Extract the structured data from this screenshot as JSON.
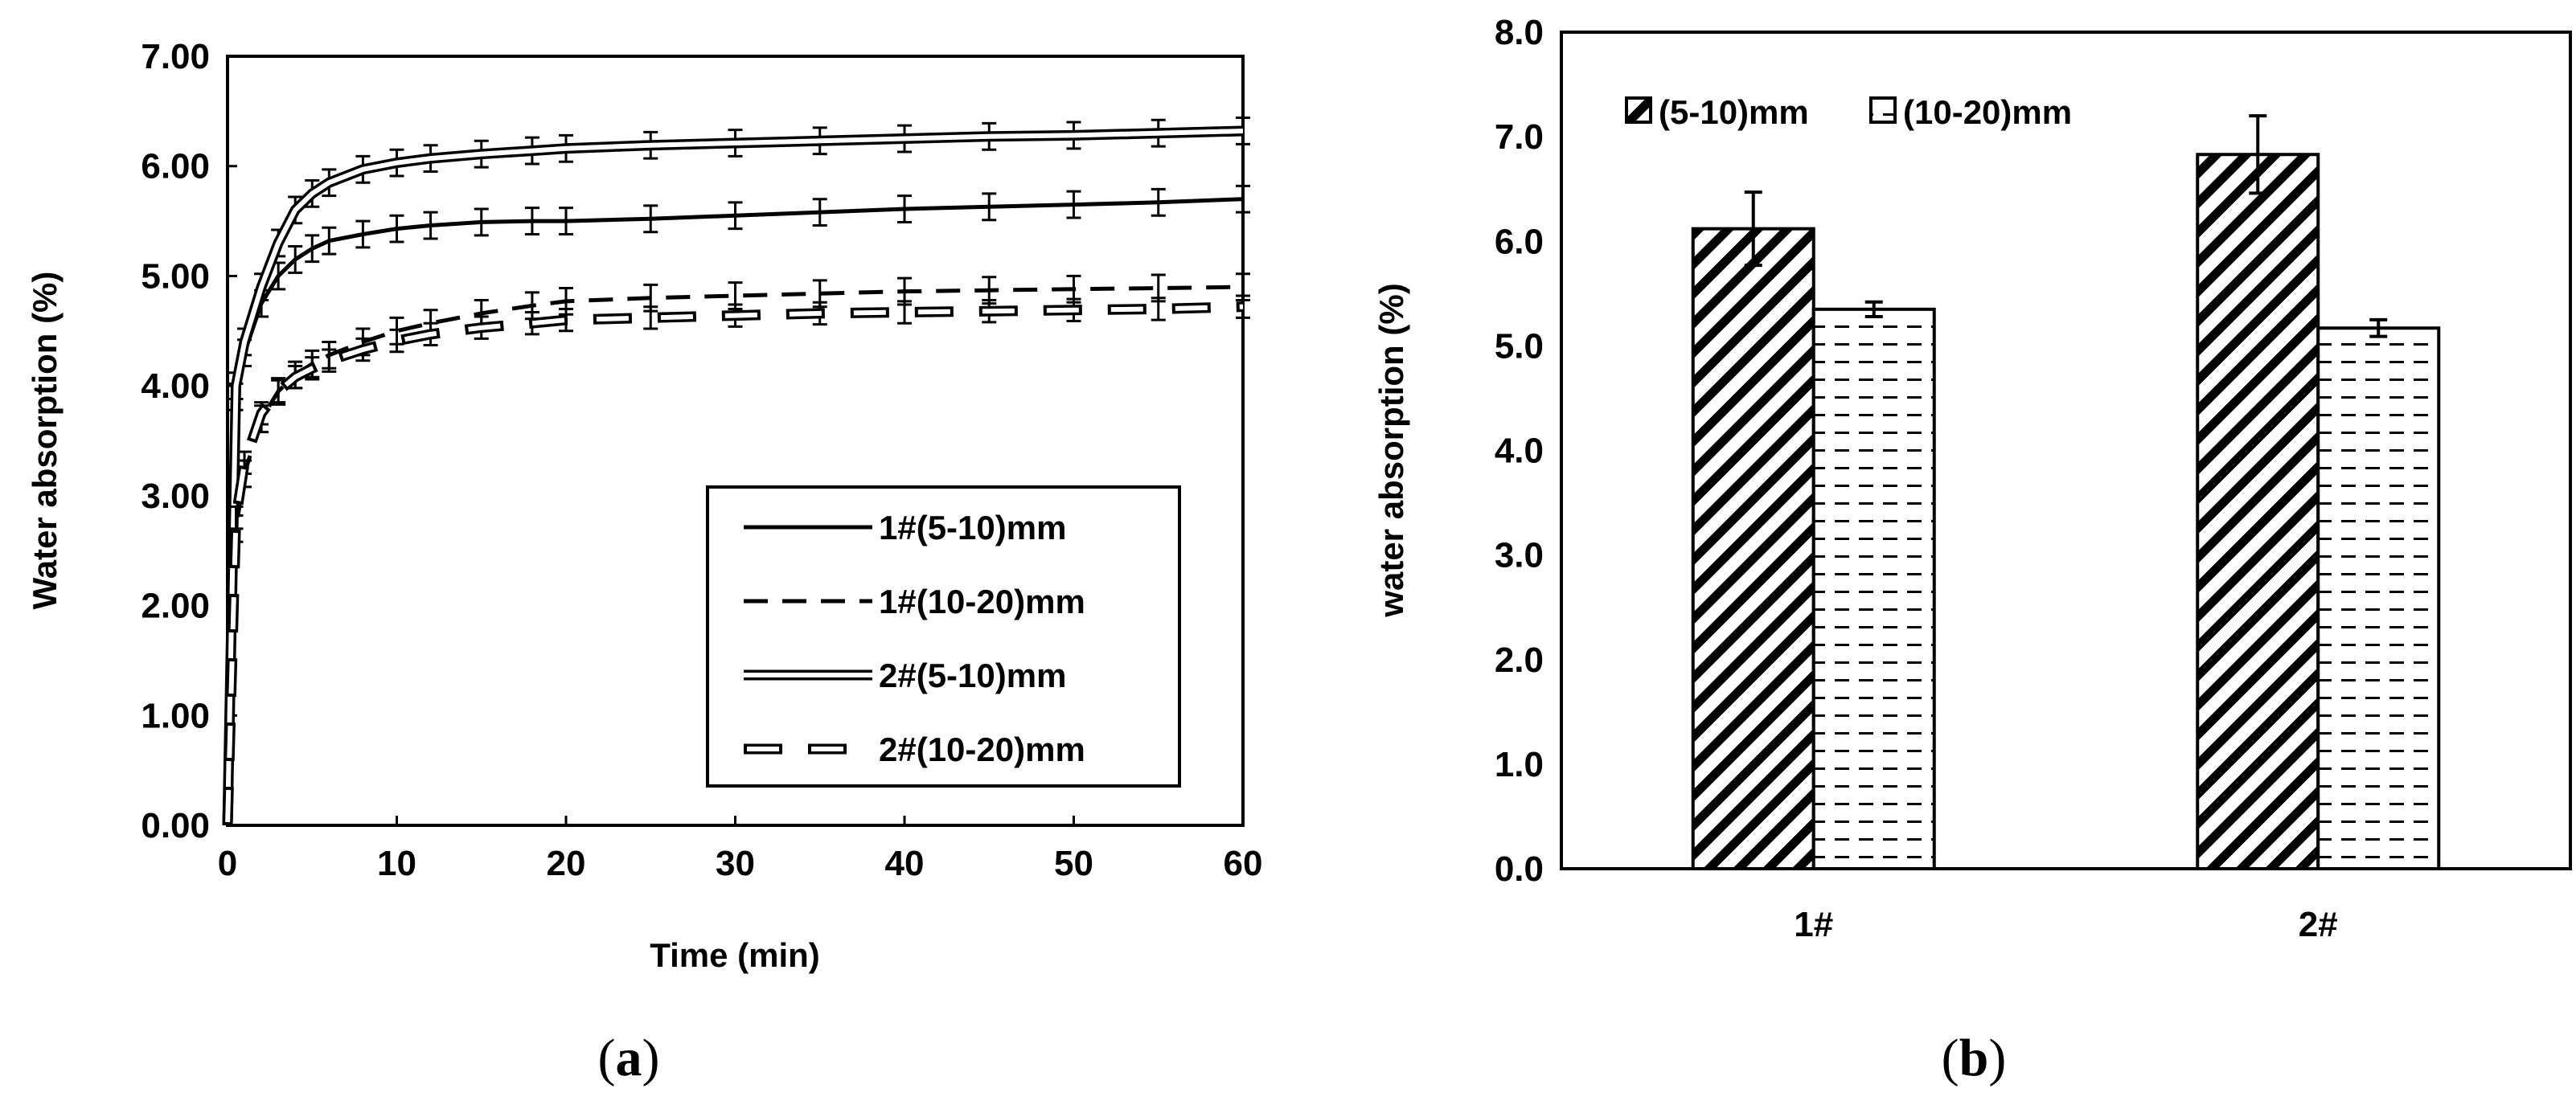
{
  "chart_data": [
    {
      "type": "line",
      "panel_label": "a",
      "xlabel": "Time (min)",
      "ylabel": "Water absorption (%)",
      "xlim": [
        0,
        60
      ],
      "ylim": [
        0,
        7
      ],
      "x_ticks": [
        "0",
        "10",
        "20",
        "30",
        "40",
        "50",
        "60"
      ],
      "y_ticks": [
        "0.00",
        "1.00",
        "2.00",
        "3.00",
        "4.00",
        "5.00",
        "6.00",
        "7.00"
      ],
      "legend_position": "bottom-right",
      "series": [
        {
          "name": "1#(5-10)mm",
          "style": "solid",
          "x": [
            0,
            0.5,
            1,
            2,
            3,
            4,
            5,
            6,
            8,
            10,
            12,
            15,
            18,
            20,
            25,
            30,
            35,
            40,
            45,
            50,
            55,
            60
          ],
          "y": [
            0,
            3.9,
            4.3,
            4.75,
            5.0,
            5.15,
            5.25,
            5.32,
            5.38,
            5.43,
            5.46,
            5.49,
            5.5,
            5.5,
            5.52,
            5.55,
            5.58,
            5.61,
            5.63,
            5.65,
            5.67,
            5.7
          ],
          "error": 0.12
        },
        {
          "name": "1#(10-20)mm",
          "style": "dashed",
          "x": [
            0,
            0.5,
            1,
            2,
            3,
            4,
            5,
            6,
            8,
            10,
            12,
            15,
            18,
            20,
            25,
            30,
            35,
            40,
            45,
            50,
            55,
            60
          ],
          "y": [
            0,
            2.7,
            3.2,
            3.7,
            3.95,
            4.1,
            4.2,
            4.28,
            4.4,
            4.5,
            4.57,
            4.66,
            4.73,
            4.77,
            4.8,
            4.82,
            4.84,
            4.86,
            4.87,
            4.88,
            4.89,
            4.9
          ],
          "error": 0.12
        },
        {
          "name": "2#(5-10)mm",
          "style": "double",
          "x": [
            0,
            0.5,
            1,
            2,
            3,
            4,
            5,
            6,
            8,
            10,
            12,
            15,
            18,
            20,
            25,
            30,
            35,
            40,
            45,
            50,
            55,
            60
          ],
          "y": [
            0,
            4.0,
            4.4,
            4.9,
            5.3,
            5.6,
            5.75,
            5.85,
            5.97,
            6.03,
            6.07,
            6.11,
            6.14,
            6.16,
            6.19,
            6.21,
            6.23,
            6.25,
            6.27,
            6.28,
            6.3,
            6.32
          ],
          "error": 0.12
        },
        {
          "name": "2#(10-20)mm",
          "style": "double-dashed",
          "x": [
            0,
            0.5,
            1,
            2,
            3,
            4,
            5,
            6,
            8,
            10,
            12,
            15,
            18,
            20,
            25,
            30,
            35,
            40,
            45,
            50,
            55,
            60
          ],
          "y": [
            0,
            2.8,
            3.3,
            3.75,
            3.95,
            4.08,
            4.16,
            4.23,
            4.33,
            4.41,
            4.47,
            4.53,
            4.57,
            4.6,
            4.62,
            4.64,
            4.66,
            4.67,
            4.68,
            4.69,
            4.7,
            4.72
          ],
          "error": 0.1
        }
      ]
    },
    {
      "type": "bar",
      "panel_label": "b",
      "xlabel": "",
      "ylabel": "water absorption (%)",
      "ylim": [
        0,
        8
      ],
      "y_ticks": [
        "0.0",
        "1.0",
        "2.0",
        "3.0",
        "4.0",
        "5.0",
        "6.0",
        "7.0",
        "8.0"
      ],
      "categories": [
        "1#",
        "2#"
      ],
      "legend_position": "top-left",
      "series": [
        {
          "name": "(5-10)mm",
          "pattern": "diagonal-hatch",
          "values": [
            6.12,
            6.83
          ],
          "errors": [
            0.35,
            0.37
          ]
        },
        {
          "name": "(10-20)mm",
          "pattern": "dashed-horizontal",
          "values": [
            5.35,
            5.17
          ],
          "errors": [
            0.07,
            0.08
          ]
        }
      ]
    }
  ],
  "captions": {
    "a": {
      "open": "(",
      "letter": "a",
      "close": ")"
    },
    "b": {
      "open": "(",
      "letter": "b",
      "close": ")"
    }
  }
}
